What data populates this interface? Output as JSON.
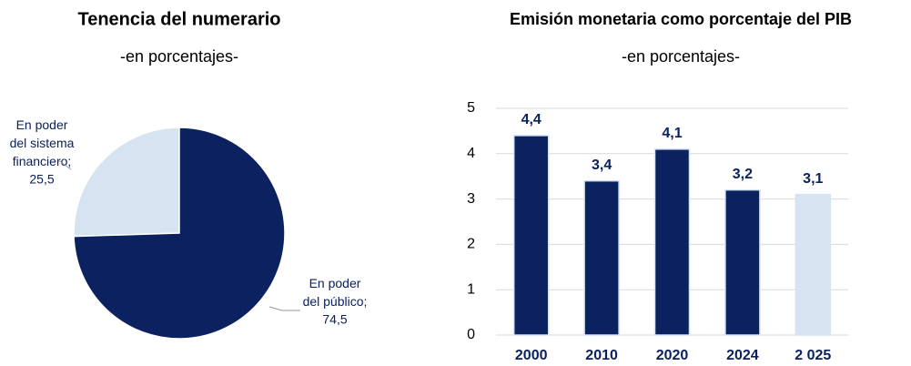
{
  "chart_data": [
    {
      "type": "pie",
      "title": "Tenencia del numerario",
      "subtitle": "-en porcentajes-",
      "categories": [
        "En poder del sistema financiero;",
        "En poder del público;"
      ],
      "values": [
        25.5,
        74.5
      ],
      "value_labels": [
        "25,5",
        "74,5"
      ],
      "colors": [
        "#d6e4f2",
        "#0b2160"
      ]
    },
    {
      "type": "bar",
      "title": "Emisión monetaria como porcentaje del PIB",
      "subtitle": "-en porcentajes-",
      "categories": [
        "2000",
        "2010",
        "2020",
        "2024",
        "2 025"
      ],
      "values": [
        4.4,
        3.4,
        4.1,
        3.2,
        3.1
      ],
      "value_labels": [
        "4,4",
        "3,4",
        "4,1",
        "3,2",
        "3,1"
      ],
      "colors": [
        "#0b2160",
        "#0b2160",
        "#0b2160",
        "#0b2160",
        "#d6e4f2"
      ],
      "ylim": [
        0,
        5
      ],
      "yticks": [
        0,
        1,
        2,
        3,
        4,
        5
      ],
      "grid": true
    }
  ]
}
